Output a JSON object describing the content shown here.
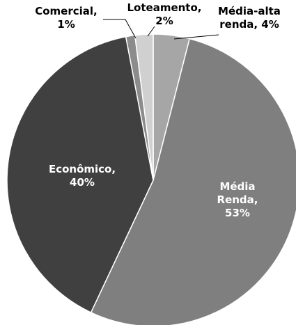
{
  "chart_data": {
    "type": "pie",
    "slices": [
      {
        "category": "Média-alta renda",
        "value": 4,
        "label_lines": [
          "Média-alta",
          "renda, 4%"
        ],
        "color": "#a6a6a6",
        "label_color": "#000000"
      },
      {
        "category": "Média Renda",
        "value": 53,
        "label_lines": [
          "Média",
          "Renda,",
          "53%"
        ],
        "color": "#7f7f7f",
        "label_color": "#ffffff"
      },
      {
        "category": "Econômico",
        "value": 40,
        "label_lines": [
          "Econômico,",
          "40%"
        ],
        "color": "#404040",
        "label_color": "#ffffff"
      },
      {
        "category": "Comercial",
        "value": 1,
        "label_lines": [
          "Comercial,",
          "1%"
        ],
        "color": "#8c8c8c",
        "label_color": "#000000"
      },
      {
        "category": "Loteamento",
        "value": 2,
        "label_lines": [
          "Loteamento,",
          "2%"
        ],
        "color": "#d0d0d0",
        "label_color": "#000000"
      }
    ],
    "start_angle_deg": 0,
    "direction": "clockwise",
    "legend": "none"
  }
}
